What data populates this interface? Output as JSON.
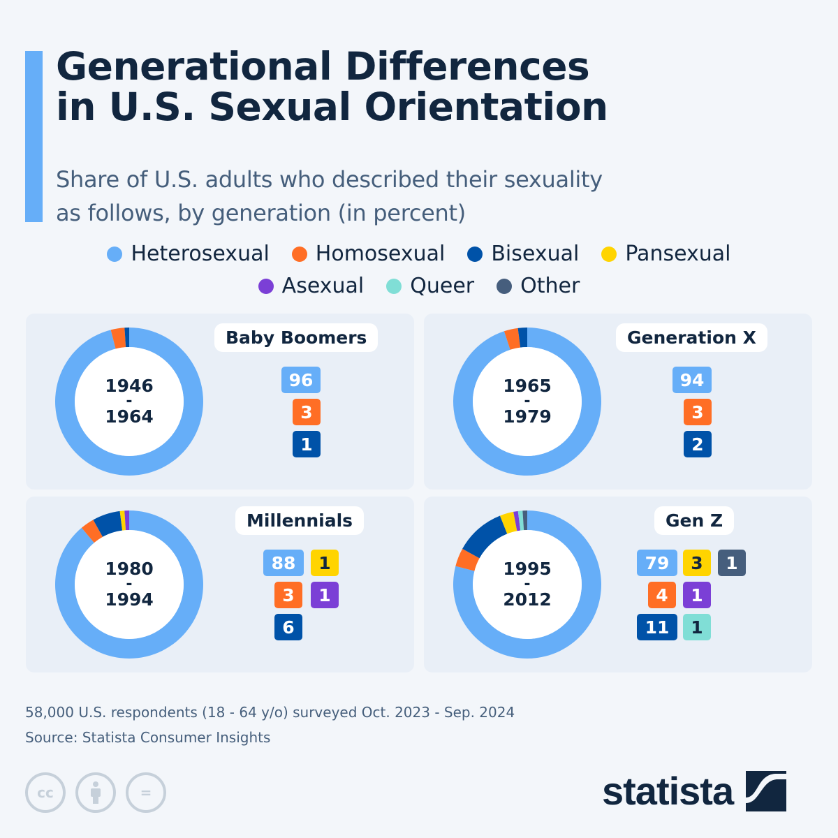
{
  "header": {
    "title_line1": "Generational Differences",
    "title_line2": "in U.S. Sexual Orientation",
    "subtitle_line1": "Share of U.S. adults who described their sexuality",
    "subtitle_line2": "as follows, by generation (in percent)"
  },
  "colors": {
    "Heterosexual": "#66aef8",
    "Homosexual": "#ff6e25",
    "Bisexual": "#0052a8",
    "Pansexual": "#ffd400",
    "Asexual": "#7b3fd6",
    "Queer": "#80ded6",
    "Other": "#465e7d",
    "accent": "#66aef8",
    "title": "#11263f"
  },
  "legend": {
    "row1": [
      "Heterosexual",
      "Homosexual",
      "Bisexual",
      "Pansexual"
    ],
    "row2": [
      "Asexual",
      "Queer",
      "Other"
    ]
  },
  "chart_data": {
    "type": "pie",
    "title": "Generational Differences in U.S. Sexual Orientation",
    "subtitle": "Share of U.S. adults who described their sexuality as follows, by generation (in percent)",
    "unit": "percent",
    "legend_position": "top-center",
    "categories": [
      "Heterosexual",
      "Homosexual",
      "Bisexual",
      "Pansexual",
      "Asexual",
      "Queer",
      "Other"
    ],
    "panels": [
      {
        "name": "Baby Boomers",
        "years_start": "1946",
        "years_end": "1964",
        "values": {
          "Heterosexual": 96,
          "Homosexual": 3,
          "Bisexual": 1
        }
      },
      {
        "name": "Generation X",
        "years_start": "1965",
        "years_end": "1979",
        "values": {
          "Heterosexual": 94,
          "Homosexual": 3,
          "Bisexual": 2
        }
      },
      {
        "name": "Millennials",
        "years_start": "1980",
        "years_end": "1994",
        "values": {
          "Heterosexual": 88,
          "Homosexual": 3,
          "Bisexual": 6,
          "Pansexual": 1,
          "Asexual": 1
        }
      },
      {
        "name": "Gen Z",
        "years_start": "1995",
        "years_end": "2012",
        "values": {
          "Heterosexual": 79,
          "Homosexual": 4,
          "Bisexual": 11,
          "Pansexual": 3,
          "Asexual": 1,
          "Queer": 1,
          "Other": 1
        }
      }
    ]
  },
  "footer": {
    "note": "58,000 U.S. respondents (18 - 64 y/o) surveyed Oct. 2023 - Sep. 2024",
    "source": "Source: Statista Consumer Insights",
    "dash": "-",
    "cc_icons": [
      "cc-icon",
      "attribution-icon",
      "no-derivatives-icon"
    ],
    "cc_label": "cc",
    "cc_equals": "=",
    "logo_text": "statista"
  }
}
